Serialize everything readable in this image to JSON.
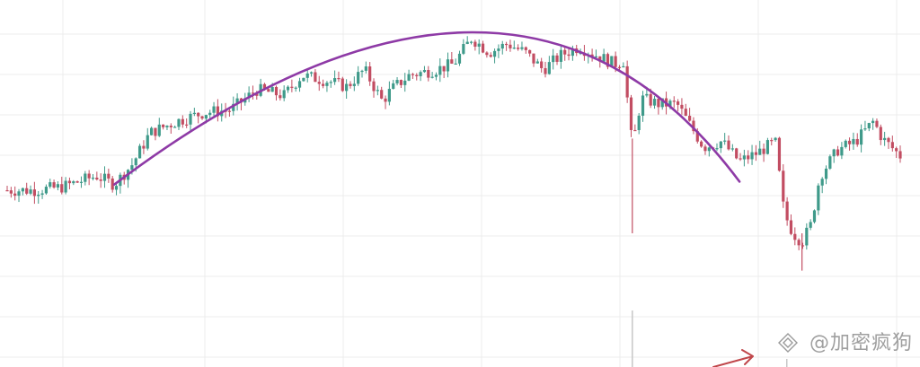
{
  "chart_data": {
    "type": "candlestick",
    "title": "",
    "xlabel": "",
    "ylabel": "",
    "grid": true,
    "legend": "none",
    "ylim": [
      0,
      100
    ],
    "xlim": [
      0,
      100
    ],
    "colors": {
      "up": "#3f9a8a",
      "down": "#c24d62",
      "arc": "#8e3aa6",
      "annotation_arrow": "#c0474b",
      "grid": "#ececec",
      "volume_line": "#c7c7c7"
    },
    "arc": {
      "start": [
        12,
        42
      ],
      "peak": [
        52,
        95
      ],
      "end": [
        82,
        43
      ]
    },
    "anchors": [
      [
        0,
        40
      ],
      [
        3,
        40
      ],
      [
        6,
        41
      ],
      [
        10,
        45
      ],
      [
        12,
        42
      ],
      [
        14,
        49
      ],
      [
        16,
        60
      ],
      [
        19,
        64
      ],
      [
        22,
        67
      ],
      [
        25,
        68
      ],
      [
        28,
        75
      ],
      [
        31,
        73
      ],
      [
        33,
        80
      ],
      [
        36,
        78
      ],
      [
        38,
        76
      ],
      [
        40,
        82
      ],
      [
        42,
        71
      ],
      [
        43,
        75
      ],
      [
        45,
        80
      ],
      [
        48,
        82
      ],
      [
        50,
        84
      ],
      [
        52,
        93
      ],
      [
        54,
        88
      ],
      [
        56,
        91
      ],
      [
        58,
        88
      ],
      [
        60,
        82
      ],
      [
        62,
        87
      ],
      [
        64,
        90
      ],
      [
        66,
        87
      ],
      [
        68,
        84
      ],
      [
        69,
        85
      ],
      [
        70,
        55
      ],
      [
        71,
        72
      ],
      [
        73,
        70
      ],
      [
        75,
        70
      ],
      [
        77,
        60
      ],
      [
        78,
        55
      ],
      [
        80,
        57
      ],
      [
        82,
        50
      ],
      [
        84,
        53
      ],
      [
        86,
        57
      ],
      [
        87,
        32
      ],
      [
        88,
        25
      ],
      [
        89,
        22
      ],
      [
        90,
        28
      ],
      [
        91,
        45
      ],
      [
        93,
        54
      ],
      [
        95,
        57
      ],
      [
        97,
        64
      ],
      [
        98,
        58
      ],
      [
        100,
        52
      ]
    ],
    "spikes": [
      {
        "x": 70,
        "low": 25
      },
      {
        "x": 89,
        "low": 12
      }
    ]
  },
  "watermark": {
    "icon": "diamond-logo-icon",
    "text": "@加密疯狗"
  }
}
